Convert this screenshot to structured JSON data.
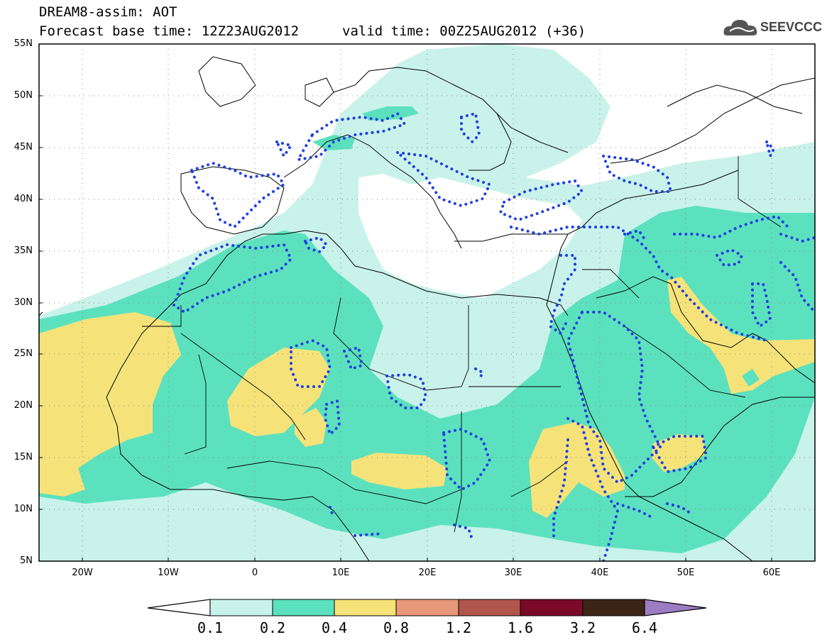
{
  "header": {
    "title_line1": "DREAM8-assim: AOT",
    "base_time": "Forecast base time: 12Z23AUG2012",
    "valid_time": "valid time: 00Z25AUG2012 (+36)"
  },
  "logo": {
    "text": "SEEVCCC",
    "icon": "cloud-icon"
  },
  "map": {
    "lat_labels": [
      "55N",
      "50N",
      "45N",
      "40N",
      "35N",
      "30N",
      "25N",
      "20N",
      "15N",
      "10N",
      "5N"
    ],
    "lon_labels": [
      "20W",
      "10W",
      "0",
      "10E",
      "20E",
      "30E",
      "40E",
      "50E",
      "60E"
    ],
    "lon_range": [
      -25,
      65
    ],
    "lat_range": [
      5,
      55
    ],
    "grid": "dotted",
    "dust_contour_color": "#1f3fe0"
  },
  "legend": {
    "bin_colors": [
      "#c9f2ea",
      "#5ce1be",
      "#f5e37a",
      "#e8987a",
      "#b0564c",
      "#7a0a28",
      "#3c2416",
      "#9c7cc2"
    ],
    "low_arrow_color": "#ffffff",
    "labels": [
      "0.1",
      "0.2",
      "0.4",
      "0.8",
      "1.2",
      "1.6",
      "3.2",
      "6.4"
    ]
  }
}
